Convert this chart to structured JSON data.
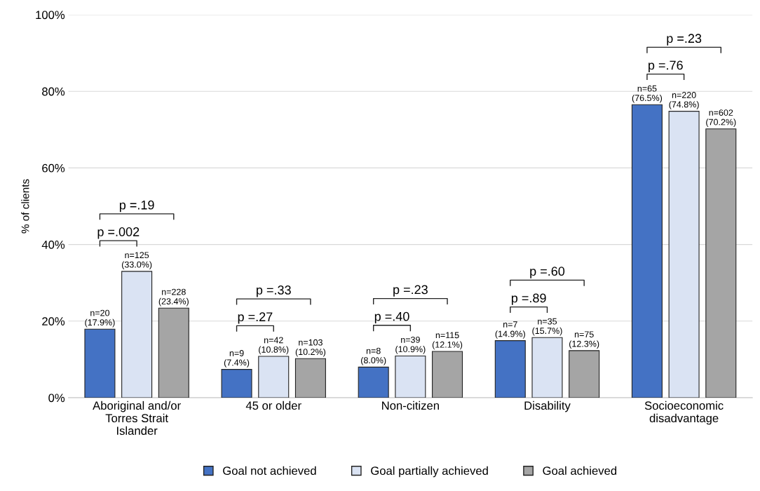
{
  "chart_data": {
    "type": "bar",
    "ylabel": "% of clients",
    "categories": [
      "Aboriginal and/or\nTorres Strait\nIslander",
      "45 or older",
      "Non-citizen",
      "Disability",
      "Socioeconomic\ndisadvantage"
    ],
    "series": [
      {
        "name": "Goal not achieved",
        "color": "#4472c4",
        "values": [
          17.9,
          7.4,
          8.0,
          14.9,
          76.5
        ],
        "value_labels": [
          "n=20\n(17.9%)",
          "n=9\n(7.4%)",
          "n=8\n(8.0%)",
          "n=7\n(14.9%)",
          "n=65\n(76.5%)"
        ]
      },
      {
        "name": "Goal partially achieved",
        "color": "#dae3f3",
        "values": [
          33.0,
          10.8,
          10.9,
          15.7,
          74.8
        ],
        "value_labels": [
          "n=125\n(33.0%)",
          "n=42\n(10.8%)",
          "n=39\n(10.9%)",
          "n=35\n(15.7%)",
          "n=220\n(74.8%)"
        ]
      },
      {
        "name": "Goal achieved",
        "color": "#a5a5a5",
        "values": [
          23.4,
          10.2,
          12.1,
          12.3,
          70.2
        ],
        "value_labels": [
          "n=228\n(23.4%)",
          "n=103\n(10.2%)",
          "n=115\n(12.1%)",
          "n=75\n(12.3%)",
          "n=602\n(70.2%)"
        ]
      }
    ],
    "ylim": [
      0,
      100
    ],
    "yticks": [
      {
        "value": 0,
        "label": "0%"
      },
      {
        "value": 20,
        "label": "20%"
      },
      {
        "value": 40,
        "label": "40%"
      },
      {
        "value": 60,
        "label": "60%"
      },
      {
        "value": 80,
        "label": "80%"
      },
      {
        "value": 100,
        "label": "100%"
      }
    ],
    "grid": "y",
    "legend": "bottom",
    "annotations": [
      "p =.19",
      "p =.002",
      "p =.33",
      "p =.27",
      "p =.23",
      "p =.40",
      "p =.60",
      "p =.89",
      "p =.23",
      "p =.76"
    ]
  }
}
